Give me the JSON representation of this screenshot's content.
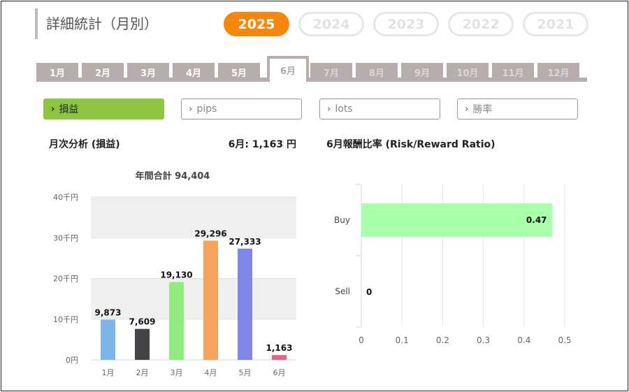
{
  "header": {
    "title": "詳細統計（月別）"
  },
  "years": [
    {
      "label": "2025",
      "active": true
    },
    {
      "label": "2024",
      "active": false
    },
    {
      "label": "2023",
      "active": false
    },
    {
      "label": "2022",
      "active": false
    },
    {
      "label": "2021",
      "active": false
    }
  ],
  "months": [
    {
      "label": "1月",
      "state": "enabled"
    },
    {
      "label": "2月",
      "state": "enabled"
    },
    {
      "label": "3月",
      "state": "enabled"
    },
    {
      "label": "4月",
      "state": "enabled"
    },
    {
      "label": "5月",
      "state": "enabled"
    },
    {
      "label": "6月",
      "state": "active"
    },
    {
      "label": "7月",
      "state": "disabled"
    },
    {
      "label": "8月",
      "state": "disabled"
    },
    {
      "label": "9月",
      "state": "disabled"
    },
    {
      "label": "10月",
      "state": "disabled"
    },
    {
      "label": "11月",
      "state": "disabled"
    },
    {
      "label": "12月",
      "state": "disabled"
    }
  ],
  "categories": [
    {
      "label": "損益",
      "active": true
    },
    {
      "label": "pips",
      "active": false
    },
    {
      "label": "lots",
      "active": false
    },
    {
      "label": "勝率",
      "active": false
    }
  ],
  "monthly": {
    "section_title": "月次分析 (損益)",
    "month_total": "6月:  1,163 円"
  },
  "ratio": {
    "section_title": "6月報酬比率 (Risk/Reward Ratio)"
  },
  "chart_data": [
    {
      "type": "bar",
      "title": "年間合計 94,404",
      "categories": [
        "1月",
        "2月",
        "3月",
        "4月",
        "5月",
        "6月"
      ],
      "values": [
        9873,
        7609,
        19130,
        29296,
        27333,
        1163
      ],
      "value_labels": [
        "9,873",
        "7,609",
        "19,130",
        "29,296",
        "27,333",
        "1,163"
      ],
      "colors": [
        "#7cb5ec",
        "#434348",
        "#90ed7d",
        "#f7a35c",
        "#8085e9",
        "#f15c80"
      ],
      "ylim": [
        0,
        40000
      ],
      "yticks": [
        0,
        10000,
        20000,
        30000,
        40000
      ],
      "ytick_labels": [
        "0円",
        "10千円",
        "20千円",
        "30千円",
        "40千円"
      ],
      "grid": "alternating bands",
      "legend": "none"
    },
    {
      "type": "bar",
      "orientation": "horizontal",
      "categories": [
        "Buy",
        "Sell"
      ],
      "values": [
        0.47,
        0
      ],
      "value_labels": [
        "0.47",
        "0"
      ],
      "colors": [
        "#aaffaa",
        "#aaffaa"
      ],
      "xlim": [
        0,
        0.5
      ],
      "xticks": [
        0,
        0.1,
        0.2,
        0.3,
        0.4,
        0.5
      ],
      "xtick_labels": [
        "0",
        "0.1",
        "0.2",
        "0.3",
        "0.4",
        "0.5"
      ],
      "grid": "vertical lines",
      "legend": "none"
    }
  ]
}
